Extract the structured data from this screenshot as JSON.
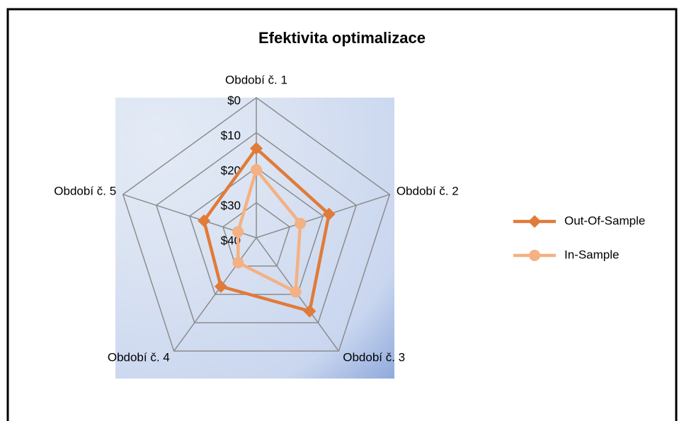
{
  "chart_data": {
    "type": "radar",
    "title": "Efektivita optimalizace",
    "categories": [
      "Období č. 1",
      "Období č. 2",
      "Období č. 3",
      "Období č. 4",
      "Období č. 5"
    ],
    "series": [
      {
        "name": "Out-Of-Sample",
        "color": "#e07b39",
        "marker": "diamond",
        "values": [
          14.5,
          18.2,
          14.1,
          22.8,
          24.3
        ]
      },
      {
        "name": "In-Sample",
        "color": "#f4b183",
        "marker": "circle",
        "values": [
          20.6,
          26.8,
          20.9,
          31.2,
          34.5
        ]
      }
    ],
    "ylim": [
      0,
      40
    ],
    "y_reversed": true,
    "yticks": [
      {
        "value": 0,
        "label": "$0"
      },
      {
        "value": 10,
        "label": "$10"
      },
      {
        "value": 20,
        "label": "$20"
      },
      {
        "value": 30,
        "label": "$30"
      },
      {
        "value": 40,
        "label": "$40"
      }
    ],
    "grid": true,
    "legend": "right"
  }
}
